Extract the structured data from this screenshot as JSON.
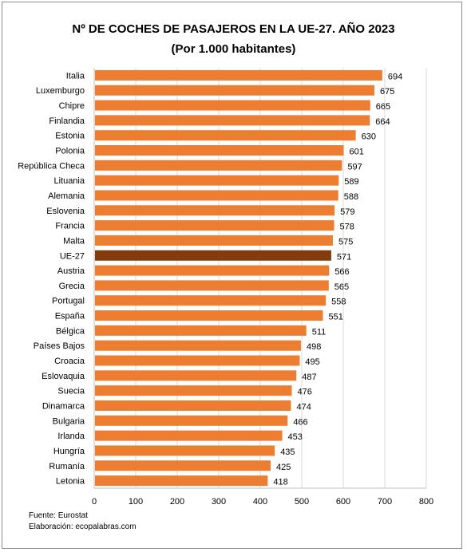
{
  "chart_data": {
    "type": "bar",
    "orientation": "horizontal",
    "title": "Nº DE COCHES DE PASAJEROS EN LA UE-27. AÑO 2023",
    "subtitle": "(Por 1.000 habitantes)",
    "categories": [
      "Italia",
      "Luxemburgo",
      "Chipre",
      "Finlandia",
      "Estonia",
      "Polonia",
      "República Checa",
      "Lituania",
      "Alemania",
      "Eslovenia",
      "Francia",
      "Malta",
      "UE-27",
      "Austria",
      "Grecia",
      "Portugal",
      "España",
      "Bélgica",
      "Países Bajos",
      "Croacia",
      "Eslovaquia",
      "Suecia",
      "Dinamarca",
      "Bulgaria",
      "Irlanda",
      "Hungría",
      "Rumanía",
      "Letonia"
    ],
    "values": [
      694,
      675,
      665,
      664,
      630,
      601,
      597,
      589,
      588,
      579,
      578,
      575,
      571,
      566,
      565,
      558,
      551,
      511,
      498,
      495,
      487,
      476,
      474,
      466,
      453,
      435,
      425,
      418
    ],
    "highlight": "UE-27",
    "colors": {
      "bar": "#ed7d31",
      "highlight": "#843c0c",
      "grid": "#d9d9d9"
    },
    "xlim": [
      0,
      800
    ],
    "xticks": [
      0,
      100,
      200,
      300,
      400,
      500,
      600,
      700,
      800
    ],
    "grid": true,
    "data_labels": true
  },
  "footer": {
    "source": "Fuente: Eurostat",
    "credit": "Elaboración: ecopalabras.com"
  }
}
